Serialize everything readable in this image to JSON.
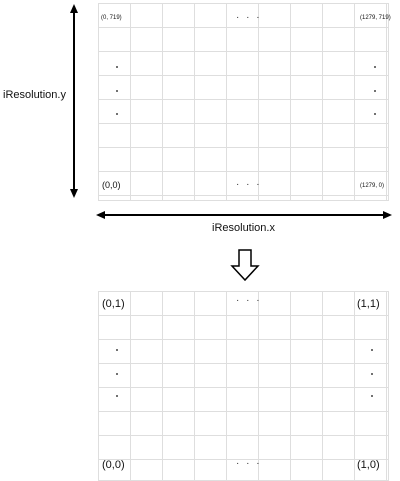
{
  "top_grid": {
    "top_left": "(0, 719)",
    "top_right": "(1279, 719)",
    "bottom_left": "(0,0)",
    "bottom_right": "(1279, 0)",
    "ellipsis": "· · ·",
    "vertical_ellipsis": "·"
  },
  "axis": {
    "y_label": "iResolution.y",
    "x_label": "iResolution.x"
  },
  "bottom_grid": {
    "top_left": "(0,1)",
    "top_right": "(1,1)",
    "bottom_left": "(0,0)",
    "bottom_right": "(1,0)",
    "ellipsis": "· · ·",
    "vertical_ellipsis": "·"
  },
  "transform_icon": "down-arrow-outline-icon"
}
